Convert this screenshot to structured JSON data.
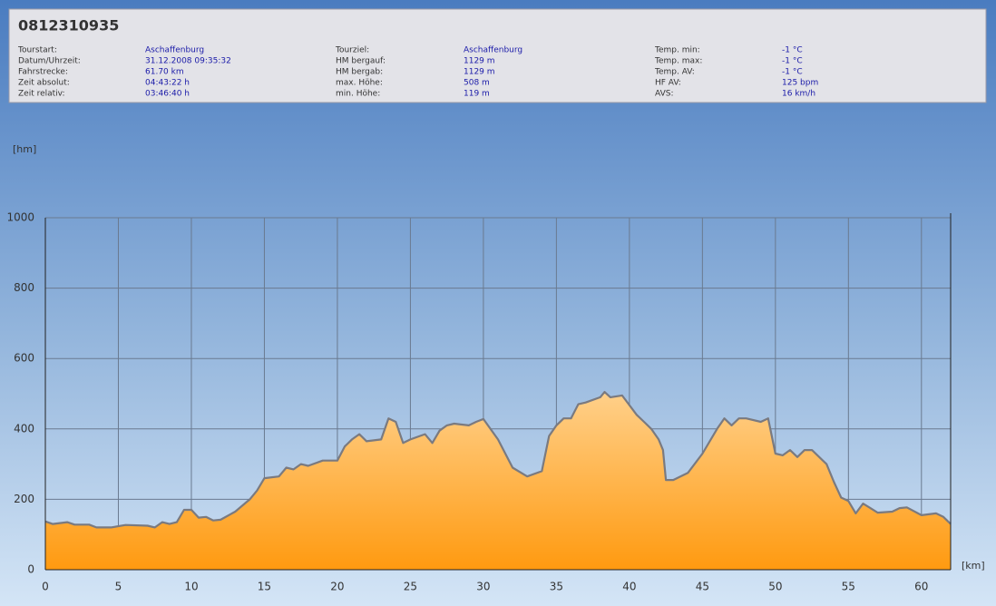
{
  "header": {
    "title": "0812310935",
    "fields": [
      {
        "label": "Tourstart:",
        "value": "Aschaffenburg"
      },
      {
        "label": "Datum/Uhrzeit:",
        "value": "31.12.2008 09:35:32"
      },
      {
        "label": "Fahrstrecke:",
        "value": "61.70 km"
      },
      {
        "label": "Zeit absolut:",
        "value": "04:43:22 h"
      },
      {
        "label": "Zeit relativ:",
        "value": "03:46:40 h"
      },
      {
        "label": "Tourziel:",
        "value": "Aschaffenburg"
      },
      {
        "label": "HM bergauf:",
        "value": "1129 m"
      },
      {
        "label": "HM bergab:",
        "value": "1129 m"
      },
      {
        "label": "max. Höhe:",
        "value": "508 m"
      },
      {
        "label": "min. Höhe:",
        "value": "119 m"
      },
      {
        "label": "Temp. min:",
        "value": "-1 °C"
      },
      {
        "label": "Temp. max:",
        "value": "-1 °C"
      },
      {
        "label": "Temp. AV:",
        "value": "-1 °C"
      },
      {
        "label": "HF AV:",
        "value": "125 bpm"
      },
      {
        "label": "AVS:",
        "value": "16 km/h"
      }
    ]
  },
  "chart_data": {
    "type": "area",
    "y_label": "[hm]",
    "x_label": "[km]",
    "color": "#ff9a10",
    "line_color": "#7a7a80",
    "grid": true,
    "x": [
      0,
      0.5,
      1.5,
      2,
      3,
      3.5,
      4.5,
      5.5,
      7,
      7.5,
      8,
      8.5,
      9,
      9.5,
      10,
      10.5,
      11,
      11.5,
      12,
      13,
      14,
      14.5,
      15,
      16,
      16.5,
      17,
      17.5,
      18,
      19,
      20,
      20.5,
      21,
      21.5,
      22,
      23,
      23.5,
      24,
      24.5,
      25,
      26,
      26.5,
      27,
      27.5,
      28,
      29,
      29.5,
      30,
      31,
      32,
      33,
      34,
      34.5,
      35,
      35.5,
      36,
      36.5,
      37,
      38,
      38.3,
      38.7,
      39.5,
      40.5,
      41,
      41.5,
      42,
      42.3,
      42.5,
      43,
      44,
      45,
      46,
      46.5,
      47,
      47.5,
      48,
      49,
      49.5,
      50,
      50.5,
      51,
      51.5,
      52,
      52.5,
      53.5,
      54,
      54.5,
      55,
      55.5,
      56,
      56.5,
      57,
      58,
      58.5,
      59,
      60,
      61,
      61.5,
      62
    ],
    "values": [
      137,
      130,
      135,
      128,
      128,
      120,
      120,
      127,
      125,
      120,
      135,
      130,
      135,
      170,
      170,
      148,
      150,
      140,
      142,
      165,
      200,
      225,
      260,
      265,
      290,
      285,
      300,
      295,
      310,
      310,
      350,
      370,
      385,
      365,
      370,
      430,
      420,
      360,
      370,
      385,
      360,
      395,
      410,
      415,
      410,
      420,
      428,
      370,
      290,
      265,
      280,
      380,
      410,
      430,
      430,
      470,
      475,
      490,
      505,
      490,
      495,
      440,
      420,
      400,
      370,
      340,
      255,
      255,
      275,
      330,
      400,
      430,
      410,
      430,
      430,
      420,
      430,
      330,
      325,
      340,
      320,
      340,
      340,
      300,
      250,
      205,
      195,
      160,
      188,
      175,
      162,
      165,
      175,
      177,
      155,
      160,
      150,
      130
    ],
    "xlim": [
      0,
      62
    ],
    "xticks": [
      0,
      5,
      10,
      15,
      20,
      25,
      30,
      35,
      40,
      45,
      50,
      55,
      60
    ],
    "ylim": [
      0,
      1000
    ],
    "yticks": [
      0,
      200,
      400,
      600,
      800,
      1000
    ]
  }
}
